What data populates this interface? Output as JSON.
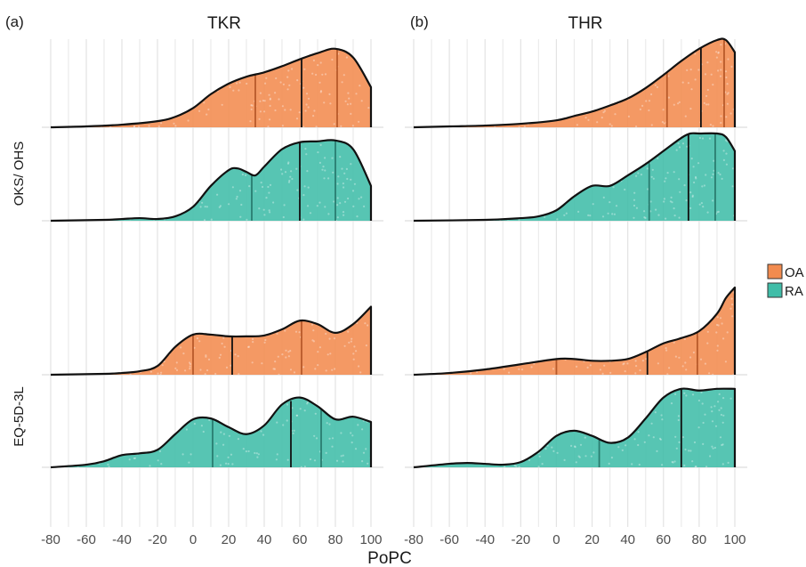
{
  "chart_data": {
    "type": "area",
    "xlabel": "PoPC",
    "xlim": [
      -80,
      100
    ],
    "xticks": [
      -80,
      -60,
      -40,
      -20,
      0,
      20,
      40,
      60,
      80,
      100
    ],
    "xtick_labels": [
      "-80",
      "-60",
      "-40",
      "-20",
      "0",
      "20",
      "40",
      "60",
      "80",
      "100"
    ],
    "legend": {
      "placement": "right",
      "entries": [
        {
          "label": "OA",
          "color": "#f28b4f"
        },
        {
          "label": "RA",
          "color": "#40bda8"
        }
      ]
    },
    "row_labels": [
      "OKS/ OHS",
      "EQ-5D-3L"
    ],
    "panels": [
      {
        "tag": "(a)",
        "title": "TKR",
        "ridges": [
          {
            "row": "OKS/ OHS",
            "group": "OA",
            "x": [
              -80,
              -60,
              -40,
              -20,
              -10,
              0,
              10,
              20,
              30,
              40,
              50,
              60,
              70,
              80,
              90,
              100
            ],
            "y": [
              0.0,
              0.01,
              0.03,
              0.07,
              0.12,
              0.22,
              0.38,
              0.5,
              0.58,
              0.63,
              0.7,
              0.78,
              0.85,
              0.9,
              0.8,
              0.46
            ],
            "quantiles": [
              35,
              61,
              81
            ]
          },
          {
            "row": "OKS/ OHS",
            "group": "RA",
            "x": [
              -80,
              -50,
              -40,
              -30,
              -20,
              -10,
              0,
              10,
              20,
              25,
              30,
              35,
              40,
              50,
              60,
              70,
              80,
              90,
              100
            ],
            "y": [
              0.0,
              0.01,
              0.02,
              0.03,
              0.02,
              0.05,
              0.16,
              0.4,
              0.58,
              0.6,
              0.56,
              0.52,
              0.62,
              0.82,
              0.9,
              0.91,
              0.92,
              0.82,
              0.4
            ],
            "quantiles": [
              33,
              60,
              80
            ]
          },
          {
            "row": "EQ-5D-3L",
            "group": "OA",
            "x": [
              -80,
              -50,
              -40,
              -30,
              -20,
              -10,
              0,
              10,
              20,
              30,
              40,
              50,
              60,
              70,
              80,
              90,
              100
            ],
            "y": [
              0.0,
              0.01,
              0.02,
              0.04,
              0.1,
              0.32,
              0.46,
              0.46,
              0.44,
              0.44,
              0.45,
              0.52,
              0.62,
              0.58,
              0.48,
              0.58,
              0.78
            ],
            "quantiles": [
              0,
              22,
              61
            ]
          },
          {
            "row": "EQ-5D-3L",
            "group": "RA",
            "x": [
              -80,
              -60,
              -50,
              -40,
              -30,
              -20,
              -10,
              0,
              10,
              20,
              30,
              40,
              50,
              60,
              70,
              80,
              90,
              100
            ],
            "y": [
              0.0,
              0.03,
              0.07,
              0.14,
              0.16,
              0.2,
              0.38,
              0.55,
              0.56,
              0.46,
              0.38,
              0.48,
              0.72,
              0.8,
              0.7,
              0.55,
              0.58,
              0.52
            ],
            "quantiles": [
              11,
              55,
              72
            ]
          }
        ]
      },
      {
        "tag": "(b)",
        "title": "THR",
        "ridges": [
          {
            "row": "OKS/ OHS",
            "group": "OA",
            "x": [
              -80,
              -60,
              -40,
              -20,
              0,
              10,
              20,
              30,
              40,
              50,
              60,
              70,
              80,
              90,
              95,
              100
            ],
            "y": [
              0.0,
              0.01,
              0.02,
              0.04,
              0.08,
              0.13,
              0.18,
              0.25,
              0.33,
              0.45,
              0.6,
              0.76,
              0.9,
              1.0,
              1.0,
              0.86
            ],
            "quantiles": [
              62,
              81,
              94
            ]
          },
          {
            "row": "OKS/ OHS",
            "group": "RA",
            "x": [
              -80,
              -40,
              -20,
              -10,
              0,
              10,
              20,
              30,
              40,
              50,
              60,
              70,
              75,
              80,
              90,
              95,
              100
            ],
            "y": [
              0.0,
              0.01,
              0.03,
              0.05,
              0.12,
              0.28,
              0.4,
              0.4,
              0.52,
              0.65,
              0.8,
              0.95,
              1.0,
              1.0,
              1.0,
              0.96,
              0.8
            ],
            "quantiles": [
              52,
              74,
              89
            ]
          },
          {
            "row": "EQ-5D-3L",
            "group": "OA",
            "x": [
              -80,
              -60,
              -40,
              -20,
              0,
              10,
              20,
              30,
              40,
              50,
              60,
              70,
              80,
              90,
              95,
              100
            ],
            "y": [
              0.0,
              0.02,
              0.06,
              0.12,
              0.18,
              0.18,
              0.16,
              0.16,
              0.18,
              0.26,
              0.36,
              0.42,
              0.5,
              0.7,
              0.88,
              1.0
            ],
            "quantiles": [
              0,
              51,
              79
            ]
          },
          {
            "row": "EQ-5D-3L",
            "group": "RA",
            "x": [
              -80,
              -60,
              -50,
              -40,
              -30,
              -20,
              -10,
              0,
              10,
              20,
              30,
              40,
              50,
              60,
              70,
              80,
              90,
              100
            ],
            "y": [
              0.0,
              0.04,
              0.05,
              0.04,
              0.03,
              0.06,
              0.18,
              0.36,
              0.42,
              0.36,
              0.28,
              0.34,
              0.56,
              0.8,
              0.9,
              0.88,
              0.9,
              0.9
            ],
            "quantiles": [
              24,
              70,
              100
            ]
          }
        ]
      }
    ]
  }
}
